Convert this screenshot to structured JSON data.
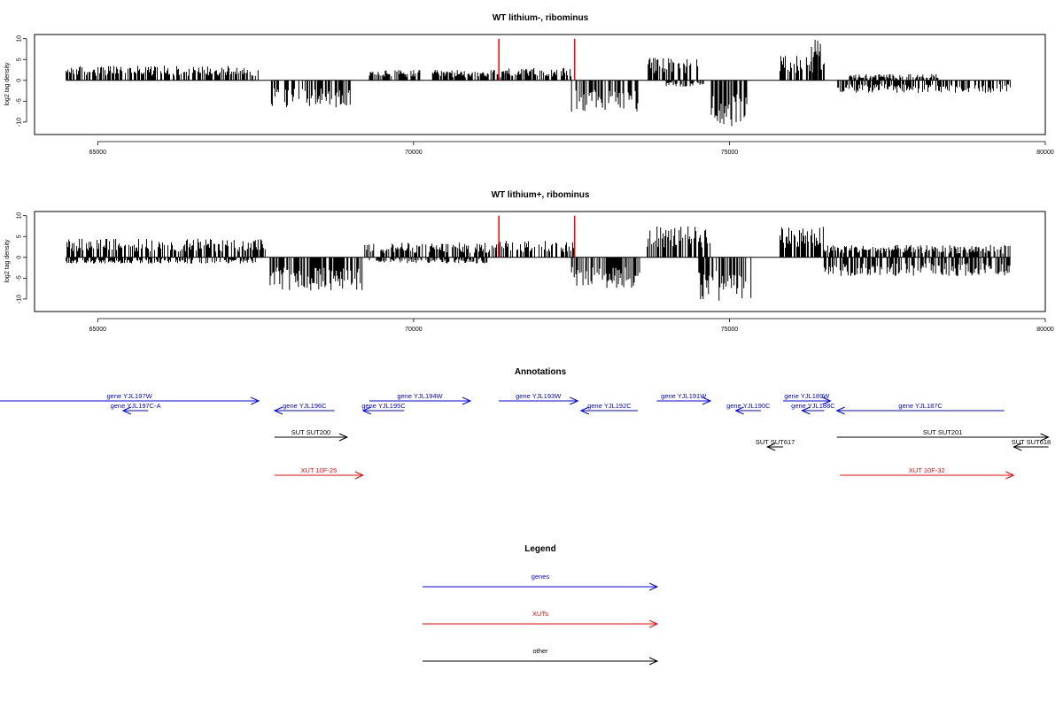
{
  "colors": {
    "gene": "#0000ff",
    "xut": "#ff0000",
    "other": "#000000",
    "marker": "#ff0000"
  },
  "chart_data": [
    {
      "type": "bar",
      "title": "WT lithium-, ribominus",
      "ylabel": "log2 tag density",
      "xlim": [
        64000,
        80000
      ],
      "ylim": [
        -13,
        11
      ],
      "x_ticks": [
        "65000",
        "70000",
        "75000",
        "80000"
      ],
      "y_ticks": [
        "10",
        "5",
        "0",
        "-5",
        "-10"
      ],
      "markers_x": [
        71350,
        72550
      ],
      "marker_height": 10,
      "density_segments": [
        {
          "start": 64500,
          "end": 67550,
          "strand": "+",
          "amplitude": 3.5
        },
        {
          "start": 67750,
          "end": 69000,
          "strand": "-",
          "amplitude": 6.5
        },
        {
          "start": 69300,
          "end": 70100,
          "strand": "+",
          "amplitude": 2.5
        },
        {
          "start": 70300,
          "end": 71500,
          "strand": "+",
          "amplitude": 2.5
        },
        {
          "start": 71400,
          "end": 72500,
          "strand": "+",
          "amplitude": 3.0
        },
        {
          "start": 72500,
          "end": 73550,
          "strand": "-",
          "amplitude": 7.5
        },
        {
          "start": 73700,
          "end": 74500,
          "strand": "+",
          "amplitude": 5.5
        },
        {
          "start": 74000,
          "end": 74600,
          "strand": "-",
          "amplitude": 1.5
        },
        {
          "start": 74700,
          "end": 75300,
          "strand": "-",
          "amplitude": 11.0
        },
        {
          "start": 75800,
          "end": 76500,
          "strand": "+",
          "amplitude": 6.0
        },
        {
          "start": 76300,
          "end": 76450,
          "strand": "+",
          "amplitude": 10.0
        },
        {
          "start": 76700,
          "end": 79450,
          "strand": "-",
          "amplitude": 3.0
        },
        {
          "start": 76900,
          "end": 78300,
          "strand": "+",
          "amplitude": 1.5
        }
      ]
    },
    {
      "type": "bar",
      "title": "WT lithium+, ribominus",
      "ylabel": "log2 tag density",
      "xlim": [
        64000,
        80000
      ],
      "ylim": [
        -13,
        11
      ],
      "x_ticks": [
        "65000",
        "70000",
        "75000",
        "80000"
      ],
      "y_ticks": [
        "10",
        "5",
        "0",
        "-5",
        "-10"
      ],
      "markers_x": [
        71350,
        72550
      ],
      "marker_height": 10,
      "density_segments": [
        {
          "start": 64500,
          "end": 67650,
          "strand": "+",
          "amplitude": 4.5
        },
        {
          "start": 64500,
          "end": 67500,
          "strand": "-",
          "amplitude": 1.5
        },
        {
          "start": 67700,
          "end": 69200,
          "strand": "-",
          "amplitude": 8.0
        },
        {
          "start": 69200,
          "end": 71300,
          "strand": "+",
          "amplitude": 3.5
        },
        {
          "start": 69300,
          "end": 71200,
          "strand": "-",
          "amplitude": 1.5
        },
        {
          "start": 71300,
          "end": 72550,
          "strand": "+",
          "amplitude": 4.0
        },
        {
          "start": 72500,
          "end": 73600,
          "strand": "-",
          "amplitude": 7.5
        },
        {
          "start": 73700,
          "end": 74700,
          "strand": "+",
          "amplitude": 7.5
        },
        {
          "start": 74500,
          "end": 75350,
          "strand": "-",
          "amplitude": 10.5
        },
        {
          "start": 75800,
          "end": 76500,
          "strand": "+",
          "amplitude": 7.5
        },
        {
          "start": 76500,
          "end": 79450,
          "strand": "+",
          "amplitude": 3.0
        },
        {
          "start": 76500,
          "end": 79450,
          "strand": "-",
          "amplitude": 4.5
        }
      ]
    }
  ],
  "annotations": {
    "title": "Annotations",
    "features": [
      {
        "label": "gene YJL197W",
        "type": "gene",
        "start": 63400,
        "end": 67550,
        "strand": "+",
        "row": 1
      },
      {
        "label": "gene YJL197C-A",
        "type": "gene",
        "start": 65800,
        "end": 65400,
        "strand": "-",
        "row": 2
      },
      {
        "label": "gene YJL196C",
        "type": "gene",
        "start": 68750,
        "end": 67800,
        "strand": "-",
        "row": 2
      },
      {
        "label": "gene YJL195C",
        "type": "gene",
        "start": 69850,
        "end": 69200,
        "strand": "-",
        "row": 2
      },
      {
        "label": "gene YJL194W",
        "type": "gene",
        "start": 69300,
        "end": 70900,
        "strand": "+",
        "row": 1
      },
      {
        "label": "gene YJL193W",
        "type": "gene",
        "start": 71350,
        "end": 72600,
        "strand": "+",
        "row": 1
      },
      {
        "label": "gene YJL192C",
        "type": "gene",
        "start": 73550,
        "end": 72650,
        "strand": "-",
        "row": 2
      },
      {
        "label": "gene YJL191W",
        "type": "gene",
        "start": 73850,
        "end": 74700,
        "strand": "+",
        "row": 1
      },
      {
        "label": "gene YJL190C",
        "type": "gene",
        "start": 75500,
        "end": 75100,
        "strand": "-",
        "row": 2
      },
      {
        "label": "gene YJL189W",
        "type": "gene",
        "start": 75850,
        "end": 76600,
        "strand": "+",
        "row": 1
      },
      {
        "label": "gene YJL188C",
        "type": "gene",
        "start": 76500,
        "end": 76150,
        "strand": "-",
        "row": 2
      },
      {
        "label": "gene YJL187C",
        "type": "gene",
        "start": 79350,
        "end": 76700,
        "strand": "-",
        "row": 2
      },
      {
        "label": "SUT SUT200",
        "type": "other",
        "start": 67800,
        "end": 68950,
        "strand": "+",
        "row": 3
      },
      {
        "label": "SUT SUT617",
        "type": "other",
        "start": 75850,
        "end": 75600,
        "strand": "-",
        "row": 4
      },
      {
        "label": "SUT SUT201",
        "type": "other",
        "start": 76700,
        "end": 80050,
        "strand": "+",
        "row": 3
      },
      {
        "label": "SUT SUT618",
        "type": "other",
        "start": 80050,
        "end": 79500,
        "strand": "-",
        "row": 4
      },
      {
        "label": "XUT 10F-25",
        "type": "xut",
        "start": 67800,
        "end": 69200,
        "strand": "+",
        "row": 5
      },
      {
        "label": "XUT 10F-32",
        "type": "xut",
        "start": 76750,
        "end": 79500,
        "strand": "+",
        "row": 5
      }
    ]
  },
  "legend": {
    "title": "Legend",
    "items": [
      {
        "label": "genes",
        "type": "gene"
      },
      {
        "label": "XUTs",
        "type": "xut"
      },
      {
        "label": "other",
        "type": "other"
      }
    ]
  }
}
